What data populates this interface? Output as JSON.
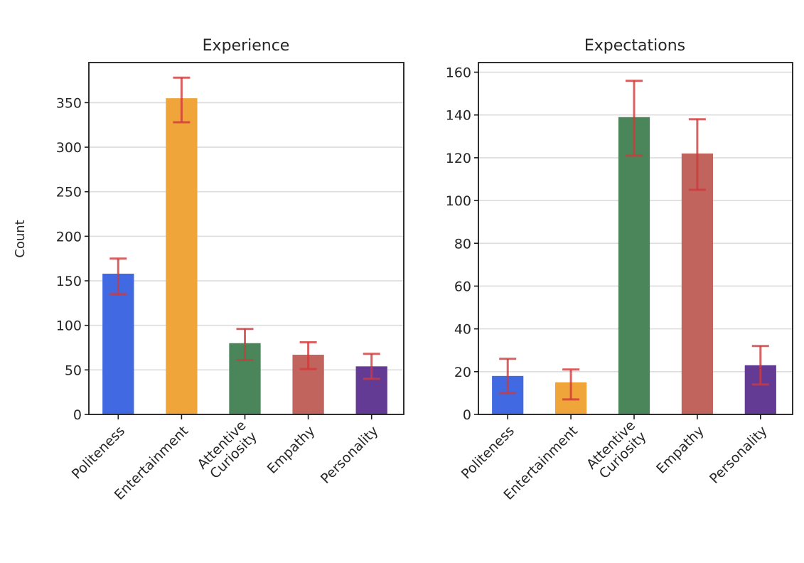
{
  "chart_data": [
    {
      "type": "bar",
      "title": "Experience",
      "xlabel": "",
      "ylabel": "Count",
      "categories": [
        "Politeness",
        "Entertainment",
        "Attentive\nCuriosity",
        "Empathy",
        "Personality"
      ],
      "values": [
        158,
        355,
        80,
        67,
        54
      ],
      "error_low": [
        135,
        328,
        61,
        51,
        40
      ],
      "error_high": [
        175,
        378,
        96,
        81,
        68
      ],
      "colors": [
        "#4169e1",
        "#f0a53a",
        "#4a8659",
        "#c0645d",
        "#633b95"
      ],
      "error_color": "#d0393a",
      "ylim": [
        0,
        395
      ],
      "yticks": [
        0,
        50,
        100,
        150,
        200,
        250,
        300,
        350
      ],
      "grid": true
    },
    {
      "type": "bar",
      "title": "Expectations",
      "xlabel": "",
      "ylabel": "",
      "categories": [
        "Politeness",
        "Entertainment",
        "Attentive\nCuriosity",
        "Empathy",
        "Personality"
      ],
      "values": [
        18,
        15,
        139,
        122,
        23
      ],
      "error_low": [
        10,
        7,
        121,
        105,
        14
      ],
      "error_high": [
        26,
        21,
        156,
        138,
        32
      ],
      "colors": [
        "#4169e1",
        "#f0a53a",
        "#4a8659",
        "#c0645d",
        "#633b95"
      ],
      "error_color": "#d0393a",
      "ylim": [
        0,
        164.5
      ],
      "yticks": [
        0,
        20,
        40,
        60,
        80,
        100,
        120,
        140,
        160
      ],
      "grid": true
    }
  ]
}
